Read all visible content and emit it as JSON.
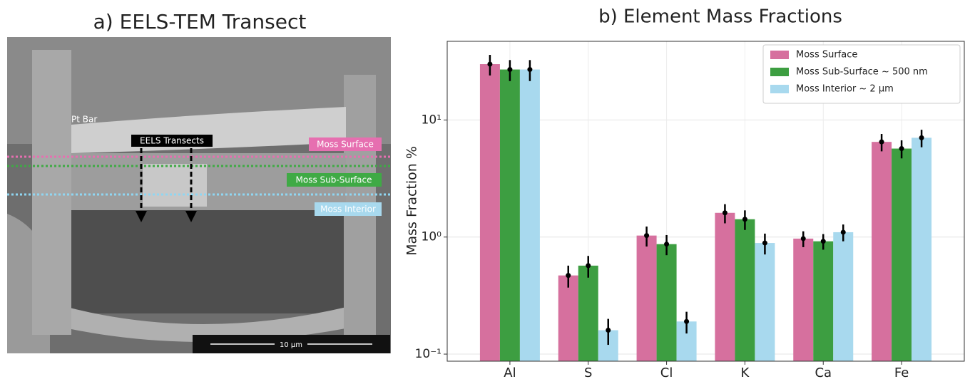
{
  "image_panel": {
    "title": "a) EELS-TEM Transect",
    "pt_label": "Pt Bar",
    "transects_label": "EELS Transects",
    "surface_label": "Moss Surface",
    "subsurface_label": "Moss Sub-Surface",
    "interior_label": "Moss Interior",
    "scale_label": "10 µm"
  },
  "chart_data": {
    "type": "bar",
    "title": "b) Element Mass Fractions",
    "y_label": "Mass Fraction %",
    "categories": [
      "Al",
      "S",
      "Cl",
      "K",
      "Ca",
      "Fe"
    ],
    "series": [
      {
        "name": "Moss Surface",
        "color": "#d6709e",
        "values": [
          30,
          0.47,
          1.03,
          1.61,
          0.97,
          6.5
        ],
        "errors": [
          6,
          0.1,
          0.2,
          0.3,
          0.15,
          1.1
        ]
      },
      {
        "name": "Moss Sub-Surface ~ 500 nm",
        "color": "#3d9e41",
        "values": [
          27,
          0.57,
          0.87,
          1.42,
          0.92,
          5.7
        ],
        "errors": [
          5.5,
          0.12,
          0.17,
          0.27,
          0.14,
          1.0
        ]
      },
      {
        "name": "Moss Interior ~ 2 µm",
        "color": "#a8d9ee",
        "values": [
          27,
          0.16,
          0.19,
          0.89,
          1.1,
          7.05
        ],
        "errors": [
          5.5,
          0.04,
          0.04,
          0.18,
          0.18,
          1.2
        ]
      }
    ],
    "log_scale": true,
    "ylim": [
      0.087,
      47
    ],
    "yticks": [
      {
        "value": 0.1,
        "label": "10⁻¹"
      },
      {
        "value": 1,
        "label": "10⁰"
      },
      {
        "value": 10,
        "label": "10¹"
      }
    ],
    "grid": true,
    "legend": "upper right",
    "error_color": "#000000"
  }
}
